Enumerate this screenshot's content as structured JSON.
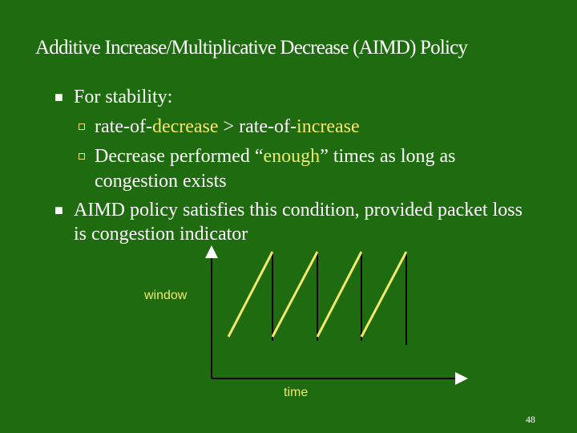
{
  "slide": {
    "title": "Additive Increase/Multiplicative Decrease (AIMD) Policy",
    "bullets": [
      {
        "text": "For stability:"
      },
      {
        "sub": [
          {
            "pre": "rate-of-",
            "hl1": "decrease",
            "mid": " > rate-of-",
            "hl2": "increase"
          },
          {
            "pre": "Decrease performed “",
            "hl": "enough",
            "post": "” times as long as",
            "cont": "congestion exists"
          }
        ]
      },
      {
        "text": "AIMD policy satisfies this condition, provided packet loss is congestion indicator"
      }
    ],
    "diagram": {
      "y_label": "window",
      "x_label": "time"
    },
    "page_number": "48"
  },
  "colors": {
    "background": "#1f6b0f",
    "accent": "#f2e86b",
    "text": "#ffffff"
  }
}
